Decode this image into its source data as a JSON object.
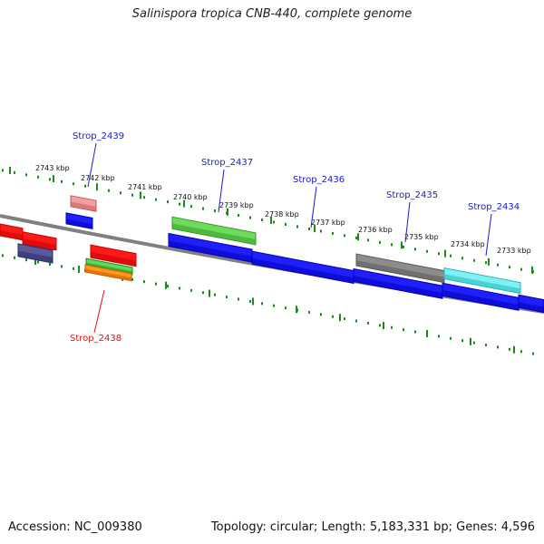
{
  "title": "Salinispora tropica CNB-440, complete genome",
  "accession_label": "Accession: NC_009380",
  "topology_label": "Topology: circular; Length: 5,183,331 bp; Genes: 4,596",
  "colors": {
    "backbone": "#808080",
    "tick": "#1a8a1a",
    "gene_label_blue": "#1a1acc",
    "gene_label_red": "#dd1111"
  },
  "kbp_labels": [
    "2743 kbp",
    "2742 kbp",
    "2741 kbp",
    "2740 kbp",
    "2739 kbp",
    "2738 kbp",
    "2737 kbp",
    "2736 kbp",
    "2735 kbp",
    "2734 kbp",
    "2733 kbp"
  ],
  "gene_labels": [
    {
      "text": "Strop_2439",
      "color": "blue"
    },
    {
      "text": "Strop_2437",
      "color": "blue"
    },
    {
      "text": "Strop_2436",
      "color": "blue"
    },
    {
      "text": "Strop_2435",
      "color": "blue"
    },
    {
      "text": "Strop_2434",
      "color": "blue"
    },
    {
      "text": "Strop_2438",
      "color": "red"
    }
  ]
}
